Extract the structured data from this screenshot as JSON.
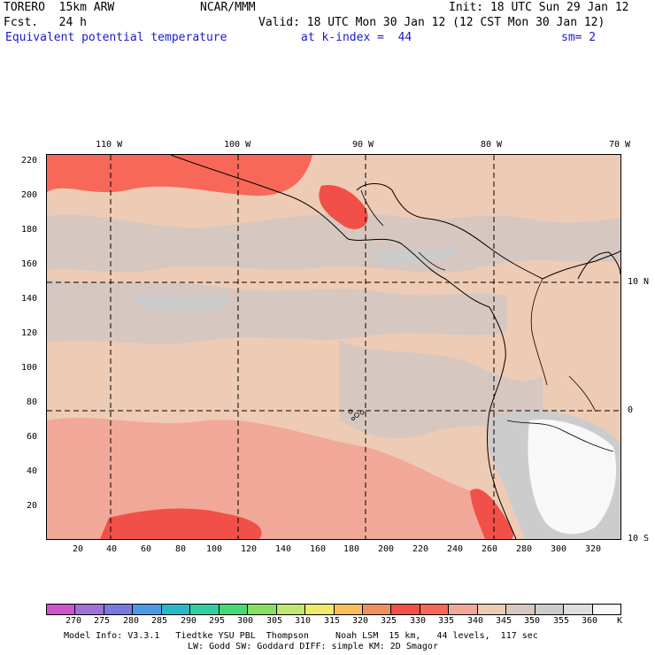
{
  "header": {
    "model": "TORERO  15km ARW",
    "org": "NCAR/MMM",
    "init": "Init: 18 UTC Sun 29 Jan 12",
    "fcst": "Fcst.   24 h",
    "valid": "Valid: 18 UTC Mon 30 Jan 12 (12 CST Mon 30 Jan 12)",
    "field": "Equivalent potential temperature",
    "level": "at k-index =  44",
    "smoothing": "sm= 2"
  },
  "map": {
    "lon_labels": [
      "110 W",
      "100 W",
      "90 W",
      "80 W",
      "70 W"
    ],
    "lat_labels": [
      "10 N",
      "0",
      "10 S"
    ],
    "y_grid_labels": [
      "220",
      "200",
      "180",
      "160",
      "140",
      "120",
      "100",
      "80",
      "60",
      "40",
      "20"
    ],
    "x_grid_labels": [
      "20",
      "40",
      "60",
      "80",
      "100",
      "120",
      "140",
      "160",
      "180",
      "200",
      "220",
      "240",
      "260",
      "280",
      "300",
      "320"
    ],
    "grid_x_range": [
      0,
      336
    ],
    "grid_y_range": [
      0,
      222
    ]
  },
  "colorbar": {
    "labels": [
      "270",
      "275",
      "280",
      "285",
      "290",
      "295",
      "300",
      "305",
      "310",
      "315",
      "320",
      "325",
      "330",
      "335",
      "340",
      "345",
      "350",
      "355",
      "360"
    ],
    "unit": "K",
    "colors": [
      "#cc55cc",
      "#a070d8",
      "#7878e0",
      "#4a9ae8",
      "#28b8c8",
      "#30d0a0",
      "#48d878",
      "#88e060",
      "#c0e870",
      "#f0e868",
      "#f8c058",
      "#f09060",
      "#f05048",
      "#f86858",
      "#f2a898",
      "#eecbb5",
      "#d6c8c0",
      "#cccccc",
      "#dedede",
      "#f8f8f8"
    ]
  },
  "footer": {
    "line1": "Model Info: V3.3.1   Tiedtke YSU PBL  Thompson     Noah LSM  15 km,   44 levels,  117 sec",
    "line2": "LW: Godd SW: Goddard DIFF: simple KM: 2D Smagor"
  }
}
